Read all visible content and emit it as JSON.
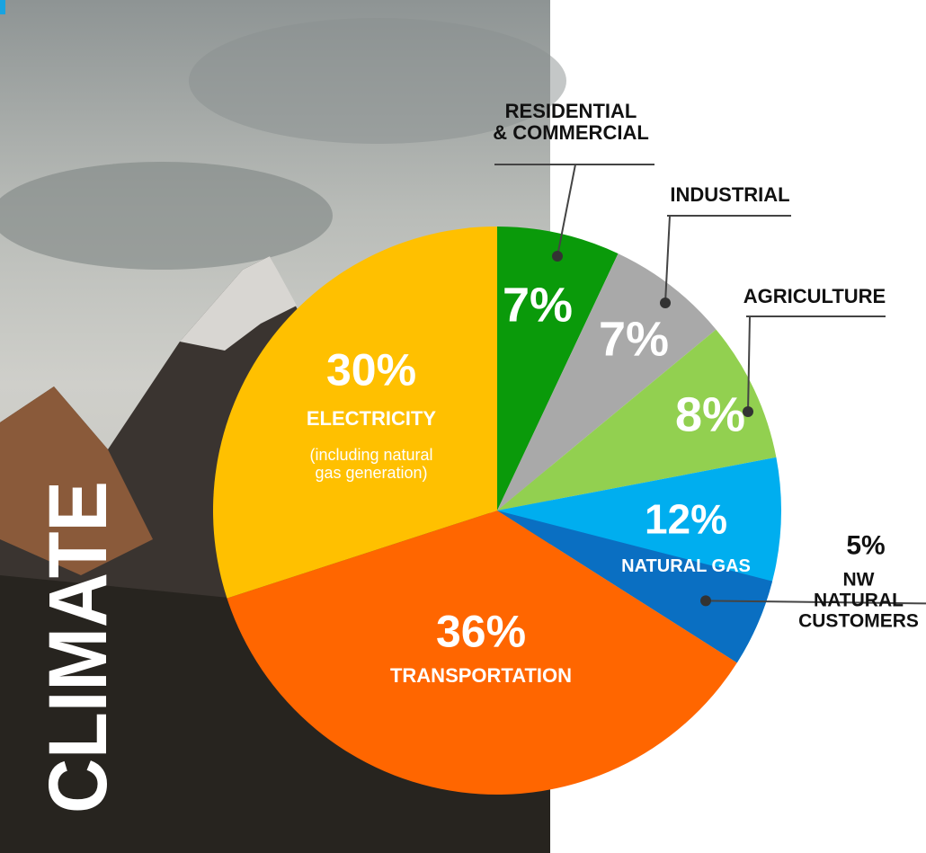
{
  "chart_data": {
    "type": "pie",
    "title": "CLIMATE",
    "slices": [
      {
        "name": "RESIDENTIAL\n& COMMERCIAL",
        "value": 7,
        "value_label": "7%",
        "color": "#0a9a0a"
      },
      {
        "name": "INDUSTRIAL",
        "value": 7,
        "value_label": "7%",
        "color": "#a9a9a9"
      },
      {
        "name": "AGRICULTURE",
        "value": 8,
        "value_label": "8%",
        "color": "#92d050"
      },
      {
        "name": "NATURAL GAS",
        "value": 12,
        "value_label": "12%",
        "color": "#00aeef",
        "subset": {
          "name": "NW NATURAL\nCUSTOMERS",
          "value": 5,
          "value_label": "5%",
          "color": "#0a6fc2"
        }
      },
      {
        "name": "TRANSPORTATION",
        "value": 36,
        "value_label": "36%",
        "color": "#ff6600"
      },
      {
        "name": "ELECTRICITY",
        "value": 30,
        "value_label": "30%",
        "color": "#ffc000",
        "note": "(including natural\ngas generation)"
      }
    ]
  }
}
